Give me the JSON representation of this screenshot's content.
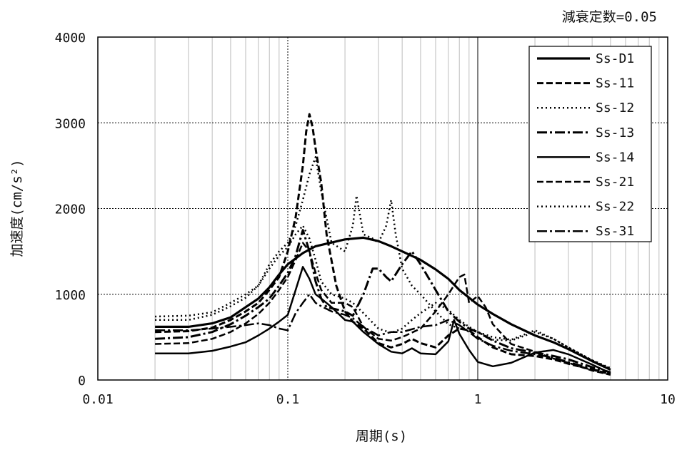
{
  "chart_data": {
    "type": "line",
    "title": "",
    "annotation": "減衰定数=0.05",
    "xlabel": "周期(s)",
    "ylabel": "加速度(cm/s²)",
    "xscale": "log",
    "xlim": [
      0.01,
      10
    ],
    "ylim": [
      0,
      4000
    ],
    "xticks": [
      "0.01",
      "0.1",
      "1",
      "10"
    ],
    "yticks": [
      "0",
      "1000",
      "2000",
      "3000",
      "4000"
    ],
    "grid": true,
    "legend_position": "top-right",
    "series": [
      {
        "name": "Ss-D1",
        "dash": "solid",
        "width": 3.2,
        "points": [
          [
            0.02,
            620
          ],
          [
            0.03,
            620
          ],
          [
            0.04,
            660
          ],
          [
            0.05,
            730
          ],
          [
            0.06,
            850
          ],
          [
            0.07,
            950
          ],
          [
            0.08,
            1080
          ],
          [
            0.09,
            1230
          ],
          [
            0.1,
            1350
          ],
          [
            0.12,
            1480
          ],
          [
            0.14,
            1560
          ],
          [
            0.16,
            1590
          ],
          [
            0.2,
            1640
          ],
          [
            0.25,
            1660
          ],
          [
            0.3,
            1620
          ],
          [
            0.35,
            1560
          ],
          [
            0.4,
            1500
          ],
          [
            0.5,
            1400
          ],
          [
            0.6,
            1290
          ],
          [
            0.7,
            1180
          ],
          [
            0.8,
            1050
          ],
          [
            1,
            880
          ],
          [
            1.2,
            770
          ],
          [
            1.5,
            650
          ],
          [
            2,
            520
          ],
          [
            2.5,
            440
          ],
          [
            3,
            360
          ],
          [
            4,
            220
          ],
          [
            5,
            120
          ]
        ]
      },
      {
        "name": "Ss-11",
        "dash": "9 4",
        "width": 3,
        "points": [
          [
            0.02,
            560
          ],
          [
            0.03,
            570
          ],
          [
            0.04,
            610
          ],
          [
            0.05,
            700
          ],
          [
            0.06,
            800
          ],
          [
            0.07,
            900
          ],
          [
            0.08,
            1050
          ],
          [
            0.09,
            1200
          ],
          [
            0.1,
            1500
          ],
          [
            0.11,
            1900
          ],
          [
            0.12,
            2500
          ],
          [
            0.125,
            2900
          ],
          [
            0.13,
            3100
          ],
          [
            0.135,
            2950
          ],
          [
            0.14,
            2700
          ],
          [
            0.15,
            2300
          ],
          [
            0.16,
            1700
          ],
          [
            0.18,
            1100
          ],
          [
            0.2,
            800
          ],
          [
            0.22,
            680
          ],
          [
            0.25,
            600
          ],
          [
            0.3,
            430
          ],
          [
            0.35,
            380
          ],
          [
            0.4,
            420
          ],
          [
            0.45,
            480
          ],
          [
            0.5,
            430
          ],
          [
            0.6,
            380
          ],
          [
            0.7,
            520
          ],
          [
            0.8,
            600
          ],
          [
            0.9,
            580
          ],
          [
            1,
            500
          ],
          [
            1.2,
            380
          ],
          [
            1.5,
            300
          ],
          [
            2,
            280
          ],
          [
            2.5,
            240
          ],
          [
            3,
            190
          ],
          [
            4,
            120
          ],
          [
            5,
            70
          ]
        ]
      },
      {
        "name": "Ss-12",
        "dash": "2 4",
        "width": 2.5,
        "points": [
          [
            0.02,
            740
          ],
          [
            0.03,
            750
          ],
          [
            0.04,
            790
          ],
          [
            0.05,
            900
          ],
          [
            0.06,
            1000
          ],
          [
            0.07,
            1100
          ],
          [
            0.08,
            1350
          ],
          [
            0.09,
            1500
          ],
          [
            0.1,
            1600
          ],
          [
            0.11,
            1800
          ],
          [
            0.12,
            2100
          ],
          [
            0.13,
            2400
          ],
          [
            0.14,
            2600
          ],
          [
            0.15,
            2200
          ],
          [
            0.17,
            1600
          ],
          [
            0.2,
            1500
          ],
          [
            0.22,
            1800
          ],
          [
            0.23,
            2150
          ],
          [
            0.25,
            1700
          ],
          [
            0.28,
            1650
          ],
          [
            0.3,
            1600
          ],
          [
            0.33,
            1800
          ],
          [
            0.35,
            2100
          ],
          [
            0.37,
            1700
          ],
          [
            0.4,
            1300
          ],
          [
            0.45,
            1100
          ],
          [
            0.5,
            1000
          ],
          [
            0.6,
            800
          ],
          [
            0.7,
            650
          ],
          [
            0.8,
            600
          ],
          [
            1,
            560
          ],
          [
            1.2,
            500
          ],
          [
            1.5,
            470
          ],
          [
            2,
            580
          ],
          [
            2.5,
            480
          ],
          [
            3,
            380
          ],
          [
            4,
            230
          ],
          [
            5,
            140
          ]
        ]
      },
      {
        "name": "Ss-13",
        "dash": "14 4 3 4",
        "width": 3,
        "points": [
          [
            0.02,
            480
          ],
          [
            0.03,
            500
          ],
          [
            0.04,
            560
          ],
          [
            0.05,
            650
          ],
          [
            0.06,
            750
          ],
          [
            0.07,
            850
          ],
          [
            0.08,
            950
          ],
          [
            0.09,
            1100
          ],
          [
            0.1,
            1250
          ],
          [
            0.11,
            1450
          ],
          [
            0.12,
            1750
          ],
          [
            0.13,
            1500
          ],
          [
            0.14,
            1150
          ],
          [
            0.15,
            950
          ],
          [
            0.16,
            850
          ],
          [
            0.2,
            800
          ],
          [
            0.22,
            750
          ],
          [
            0.25,
            1000
          ],
          [
            0.28,
            1300
          ],
          [
            0.3,
            1300
          ],
          [
            0.33,
            1200
          ],
          [
            0.35,
            1150
          ],
          [
            0.4,
            1350
          ],
          [
            0.45,
            1500
          ],
          [
            0.5,
            1350
          ],
          [
            0.6,
            1050
          ],
          [
            0.7,
            800
          ],
          [
            0.8,
            680
          ],
          [
            0.9,
            600
          ],
          [
            1,
            560
          ],
          [
            1.2,
            460
          ],
          [
            1.5,
            370
          ],
          [
            2,
            320
          ],
          [
            2.5,
            280
          ],
          [
            3,
            240
          ],
          [
            4,
            150
          ],
          [
            5,
            90
          ]
        ]
      },
      {
        "name": "Ss-14",
        "dash": "solid",
        "width": 2.5,
        "points": [
          [
            0.02,
            310
          ],
          [
            0.03,
            310
          ],
          [
            0.04,
            340
          ],
          [
            0.05,
            390
          ],
          [
            0.06,
            440
          ],
          [
            0.07,
            520
          ],
          [
            0.08,
            600
          ],
          [
            0.09,
            680
          ],
          [
            0.1,
            760
          ],
          [
            0.11,
            1050
          ],
          [
            0.12,
            1320
          ],
          [
            0.13,
            1180
          ],
          [
            0.14,
            1000
          ],
          [
            0.15,
            950
          ],
          [
            0.17,
            850
          ],
          [
            0.2,
            700
          ],
          [
            0.22,
            680
          ],
          [
            0.25,
            560
          ],
          [
            0.3,
            420
          ],
          [
            0.35,
            330
          ],
          [
            0.4,
            310
          ],
          [
            0.45,
            370
          ],
          [
            0.5,
            310
          ],
          [
            0.6,
            300
          ],
          [
            0.7,
            450
          ],
          [
            0.75,
            700
          ],
          [
            0.8,
            540
          ],
          [
            0.9,
            350
          ],
          [
            1,
            210
          ],
          [
            1.2,
            160
          ],
          [
            1.5,
            200
          ],
          [
            2,
            320
          ],
          [
            2.5,
            350
          ],
          [
            3,
            300
          ],
          [
            4,
            180
          ],
          [
            5,
            80
          ]
        ]
      },
      {
        "name": "Ss-21",
        "dash": "9 4",
        "width": 2.5,
        "points": [
          [
            0.02,
            420
          ],
          [
            0.03,
            430
          ],
          [
            0.04,
            480
          ],
          [
            0.05,
            560
          ],
          [
            0.06,
            660
          ],
          [
            0.07,
            770
          ],
          [
            0.08,
            900
          ],
          [
            0.09,
            1050
          ],
          [
            0.1,
            1200
          ],
          [
            0.11,
            1400
          ],
          [
            0.12,
            1600
          ],
          [
            0.13,
            1500
          ],
          [
            0.14,
            1250
          ],
          [
            0.15,
            1050
          ],
          [
            0.17,
            900
          ],
          [
            0.2,
            900
          ],
          [
            0.22,
            850
          ],
          [
            0.25,
            620
          ],
          [
            0.3,
            480
          ],
          [
            0.35,
            460
          ],
          [
            0.4,
            500
          ],
          [
            0.5,
            600
          ],
          [
            0.6,
            800
          ],
          [
            0.7,
            1000
          ],
          [
            0.8,
            1200
          ],
          [
            0.85,
            1230
          ],
          [
            0.9,
            900
          ],
          [
            1,
            980
          ],
          [
            1.1,
            850
          ],
          [
            1.2,
            650
          ],
          [
            1.5,
            420
          ],
          [
            2,
            330
          ],
          [
            2.5,
            250
          ],
          [
            3,
            200
          ],
          [
            4,
            110
          ],
          [
            5,
            60
          ]
        ]
      },
      {
        "name": "Ss-22",
        "dash": "2 4",
        "width": 2.5,
        "points": [
          [
            0.02,
            700
          ],
          [
            0.03,
            700
          ],
          [
            0.04,
            760
          ],
          [
            0.05,
            860
          ],
          [
            0.06,
            960
          ],
          [
            0.07,
            1100
          ],
          [
            0.08,
            1300
          ],
          [
            0.09,
            1450
          ],
          [
            0.1,
            1550
          ],
          [
            0.11,
            1700
          ],
          [
            0.12,
            1800
          ],
          [
            0.13,
            1650
          ],
          [
            0.14,
            1400
          ],
          [
            0.15,
            1150
          ],
          [
            0.17,
            1000
          ],
          [
            0.2,
            950
          ],
          [
            0.22,
            900
          ],
          [
            0.25,
            780
          ],
          [
            0.3,
            600
          ],
          [
            0.35,
            550
          ],
          [
            0.4,
            600
          ],
          [
            0.45,
            700
          ],
          [
            0.5,
            780
          ],
          [
            0.6,
            900
          ],
          [
            0.7,
            820
          ],
          [
            0.8,
            700
          ],
          [
            0.9,
            620
          ],
          [
            1,
            560
          ],
          [
            1.2,
            470
          ],
          [
            1.5,
            460
          ],
          [
            2,
            560
          ],
          [
            2.5,
            480
          ],
          [
            3,
            380
          ],
          [
            4,
            230
          ],
          [
            5,
            130
          ]
        ]
      },
      {
        "name": "Ss-31",
        "dash": "14 4 3 4",
        "width": 2.5,
        "points": [
          [
            0.02,
            580
          ],
          [
            0.03,
            580
          ],
          [
            0.04,
            600
          ],
          [
            0.05,
            620
          ],
          [
            0.06,
            640
          ],
          [
            0.07,
            660
          ],
          [
            0.08,
            640
          ],
          [
            0.09,
            600
          ],
          [
            0.1,
            580
          ],
          [
            0.11,
            780
          ],
          [
            0.12,
            900
          ],
          [
            0.13,
            1000
          ],
          [
            0.14,
            900
          ],
          [
            0.15,
            860
          ],
          [
            0.17,
            800
          ],
          [
            0.2,
            760
          ],
          [
            0.22,
            720
          ],
          [
            0.25,
            620
          ],
          [
            0.3,
            520
          ],
          [
            0.35,
            560
          ],
          [
            0.4,
            560
          ],
          [
            0.5,
            620
          ],
          [
            0.6,
            640
          ],
          [
            0.7,
            700
          ],
          [
            0.8,
            640
          ],
          [
            0.9,
            560
          ],
          [
            1,
            480
          ],
          [
            1.2,
            400
          ],
          [
            1.5,
            340
          ],
          [
            2,
            300
          ],
          [
            2.5,
            260
          ],
          [
            3,
            210
          ],
          [
            4,
            130
          ],
          [
            5,
            70
          ]
        ]
      }
    ]
  }
}
